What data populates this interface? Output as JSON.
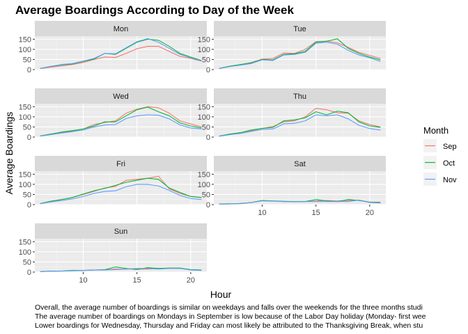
{
  "chart_data": {
    "type": "line",
    "title": "Average Boardings According to Day of the Week",
    "xlabel": "Hour",
    "ylabel": "Average Boardings",
    "xlim": [
      5.5,
      21.5
    ],
    "ylim": [
      0,
      165
    ],
    "x_ticks": [
      10,
      15,
      20
    ],
    "y_ticks": [
      0,
      50,
      100,
      150
    ],
    "legend": {
      "title": "Month",
      "placement": "right"
    },
    "x": [
      6,
      7,
      8,
      9,
      10,
      11,
      12,
      13,
      14,
      15,
      16,
      17,
      18,
      19,
      20,
      21
    ],
    "series_style": [
      {
        "name": "Sep",
        "color": "#F8766D"
      },
      {
        "name": "Oct",
        "color": "#00BA38"
      },
      {
        "name": "Nov",
        "color": "#619CFF"
      }
    ],
    "panels": [
      {
        "label": "Mon",
        "series": [
          {
            "name": "Sep",
            "values": [
              5,
              12,
              18,
              25,
              35,
              50,
              62,
              60,
              80,
              103,
              115,
              115,
              90,
              65,
              55,
              42
            ]
          },
          {
            "name": "Oct",
            "values": [
              6,
              15,
              23,
              28,
              40,
              52,
              80,
              75,
              105,
              135,
              150,
              145,
              115,
              80,
              62,
              45
            ]
          },
          {
            "name": "Nov",
            "values": [
              6,
              16,
              25,
              30,
              42,
              55,
              80,
              78,
              108,
              138,
              153,
              135,
              105,
              75,
              58,
              43
            ]
          }
        ]
      },
      {
        "label": "Tue",
        "series": [
          {
            "name": "Sep",
            "values": [
              5,
              15,
              25,
              35,
              52,
              55,
              82,
              80,
              100,
              138,
              140,
              132,
              110,
              85,
              70,
              55
            ]
          },
          {
            "name": "Oct",
            "values": [
              6,
              17,
              25,
              33,
              50,
              48,
              75,
              78,
              90,
              135,
              140,
              152,
              105,
              80,
              62,
              48
            ]
          },
          {
            "name": "Nov",
            "values": [
              5,
              15,
              22,
              30,
              48,
              45,
              72,
              75,
              85,
              130,
              135,
              125,
              95,
              72,
              58,
              40
            ]
          }
        ]
      },
      {
        "label": "Wed",
        "series": [
          {
            "name": "Sep",
            "values": [
              5,
              15,
              22,
              30,
              40,
              62,
              72,
              80,
              118,
              138,
              150,
              145,
              118,
              80,
              65,
              50
            ]
          },
          {
            "name": "Oct",
            "values": [
              6,
              15,
              25,
              32,
              40,
              55,
              75,
              75,
              105,
              135,
              148,
              125,
              105,
              70,
              55,
              45
            ]
          },
          {
            "name": "Nov",
            "values": [
              5,
              12,
              20,
              27,
              35,
              50,
              60,
              62,
              92,
              105,
              110,
              108,
              90,
              60,
              45,
              40
            ]
          }
        ]
      },
      {
        "label": "Thu",
        "series": [
          {
            "name": "Sep",
            "values": [
              5,
              15,
              22,
              32,
              43,
              52,
              75,
              80,
              100,
              142,
              135,
              120,
              118,
              80,
              62,
              50
            ]
          },
          {
            "name": "Oct",
            "values": [
              5,
              15,
              22,
              35,
              43,
              48,
              80,
              85,
              95,
              125,
              110,
              128,
              120,
              75,
              55,
              48
            ]
          },
          {
            "name": "Nov",
            "values": [
              4,
              12,
              18,
              28,
              38,
              40,
              65,
              68,
              80,
              110,
              105,
              110,
              90,
              58,
              42,
              35
            ]
          }
        ]
      },
      {
        "label": "Fri",
        "series": [
          {
            "name": "Sep",
            "values": [
              5,
              17,
              25,
              35,
              50,
              65,
              82,
              90,
              120,
              125,
              130,
              140,
              78,
              55,
              40,
              35
            ]
          },
          {
            "name": "Oct",
            "values": [
              5,
              16,
              25,
              35,
              52,
              68,
              80,
              95,
              110,
              120,
              130,
              125,
              82,
              60,
              40,
              35
            ]
          },
          {
            "name": "Nov",
            "values": [
              4,
              13,
              20,
              28,
              40,
              55,
              65,
              68,
              88,
              100,
              100,
              92,
              70,
              45,
              30,
              25
            ]
          }
        ]
      },
      {
        "label": "Sat",
        "series": [
          {
            "name": "Sep",
            "values": [
              2,
              3,
              5,
              10,
              20,
              18,
              15,
              15,
              15,
              18,
              20,
              18,
              20,
              22,
              12,
              12
            ]
          },
          {
            "name": "Oct",
            "values": [
              3,
              4,
              5,
              10,
              20,
              18,
              16,
              15,
              15,
              25,
              18,
              15,
              25,
              20,
              12,
              10
            ]
          },
          {
            "name": "Nov",
            "values": [
              2,
              3,
              6,
              10,
              18,
              17,
              15,
              14,
              15,
              15,
              15,
              15,
              15,
              22,
              10,
              8
            ]
          }
        ]
      },
      {
        "label": "Sun",
        "series": [
          {
            "name": "Sep",
            "values": [
              2,
              5,
              5,
              7,
              8,
              10,
              12,
              15,
              15,
              15,
              15,
              18,
              18,
              18,
              12,
              10
            ]
          },
          {
            "name": "Oct",
            "values": [
              2,
              5,
              5,
              8,
              8,
              10,
              12,
              25,
              18,
              12,
              22,
              18,
              20,
              20,
              12,
              10
            ]
          },
          {
            "name": "Nov",
            "values": [
              2,
              4,
              5,
              6,
              8,
              10,
              10,
              12,
              15,
              18,
              18,
              15,
              18,
              18,
              10,
              8
            ]
          }
        ]
      }
    ]
  },
  "caption": [
    "Overall, the average number of boardings is similar on weekdays and falls over the weekends for the three months studi",
    "The average number of boardings on Mondays in September is low because of the Labor Day holiday (Monday- first wee",
    "Lower boardings for Wednesday, Thursday and Friday can most likely be attributed to the Thanksgiving Break, when stu"
  ]
}
